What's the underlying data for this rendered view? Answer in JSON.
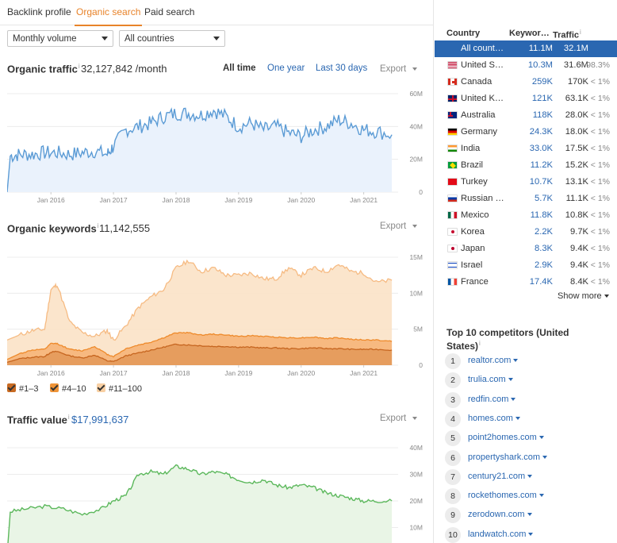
{
  "tabs": [
    {
      "label": "Backlink profile",
      "active": false
    },
    {
      "label": "Organic search",
      "active": true
    },
    {
      "label": "Paid search",
      "active": false
    }
  ],
  "filters": {
    "volume": "Monthly volume",
    "country": "All countries"
  },
  "organic_traffic": {
    "title": "Organic traffic",
    "value": "32,127,842 /month",
    "ranges": [
      {
        "label": "All time",
        "active": true
      },
      {
        "label": "One year",
        "active": false
      },
      {
        "label": "Last 30 days",
        "active": false
      }
    ],
    "export_label": "Export"
  },
  "organic_keywords": {
    "title": "Organic keywords",
    "value": "11,142,555",
    "export_label": "Export",
    "legend": [
      {
        "label": "#1–3",
        "color": "#c86a22"
      },
      {
        "label": "#4–10",
        "color": "#ef9438"
      },
      {
        "label": "#11–100",
        "color": "#f8cfa2"
      }
    ]
  },
  "traffic_value": {
    "title": "Traffic value",
    "value": "$17,991,637",
    "export_label": "Export"
  },
  "colors": {
    "accent": "#e8832a",
    "link": "#2a67b1",
    "traffic_line": "#5b9bd5",
    "traffic_fill": "#eaf2fc",
    "value_line": "#5cb85c",
    "value_fill": "#e9f5e6"
  },
  "chart_data": [
    {
      "type": "area",
      "name": "organic-traffic",
      "x_ticks": [
        "Jan 2016",
        "Jan 2017",
        "Jan 2018",
        "Jan 2019",
        "Jan 2020",
        "Jan 2021"
      ],
      "y_ticks": [
        "60M",
        "40M",
        "20M",
        "0"
      ],
      "ylim": [
        0,
        60
      ],
      "x": [
        2015.3,
        2015.35,
        2015.5,
        2015.7,
        2015.9,
        2016.1,
        2016.3,
        2016.5,
        2016.7,
        2016.9,
        2017.0,
        2017.2,
        2017.4,
        2017.6,
        2017.8,
        2018.0,
        2018.2,
        2018.4,
        2018.6,
        2018.8,
        2019.0,
        2019.2,
        2019.4,
        2019.6,
        2019.8,
        2020.0,
        2020.2,
        2020.4,
        2020.6,
        2020.8,
        2021.0,
        2021.2,
        2021.45
      ],
      "values": [
        0,
        22,
        23,
        23,
        24,
        24,
        23,
        24,
        25,
        23,
        28,
        38,
        40,
        42,
        46,
        48,
        48,
        47,
        50,
        46,
        40,
        42,
        38,
        40,
        36,
        34,
        38,
        40,
        44,
        42,
        38,
        37,
        35
      ]
    },
    {
      "type": "area",
      "name": "organic-keywords",
      "x_ticks": [
        "Jan 2016",
        "Jan 2017",
        "Jan 2018",
        "Jan 2019",
        "Jan 2020",
        "Jan 2021"
      ],
      "y_ticks": [
        "15M",
        "10M",
        "5M",
        "0"
      ],
      "ylim": [
        0,
        15
      ],
      "x": [
        2015.3,
        2015.5,
        2015.7,
        2015.9,
        2016.0,
        2016.1,
        2016.3,
        2016.5,
        2016.7,
        2016.9,
        2017.0,
        2017.2,
        2017.4,
        2017.6,
        2017.8,
        2018.0,
        2018.2,
        2018.4,
        2018.6,
        2018.8,
        2019.0,
        2019.2,
        2019.4,
        2019.6,
        2019.8,
        2020.0,
        2020.2,
        2020.4,
        2020.6,
        2020.8,
        2021.0,
        2021.2,
        2021.45
      ],
      "series": [
        {
          "name": "#11–100",
          "values": [
            3.5,
            4.2,
            4.8,
            5.0,
            10.5,
            11.2,
            6.0,
            4.5,
            4.0,
            4.8,
            3.5,
            5.5,
            8.0,
            9.5,
            10.5,
            13.5,
            14.5,
            13.0,
            13.5,
            12.5,
            12.5,
            12.8,
            12.0,
            12.0,
            13.5,
            12.5,
            13.5,
            13.0,
            14.0,
            13.0,
            12.8,
            11.5,
            11.8
          ]
        },
        {
          "name": "#4–10",
          "values": [
            0.8,
            1.6,
            2.1,
            2.2,
            3.0,
            3.0,
            2.2,
            2.0,
            2.6,
            1.5,
            1.2,
            2.3,
            2.8,
            3.2,
            3.8,
            4.5,
            4.5,
            4.2,
            4.3,
            4.2,
            4.0,
            4.1,
            4.0,
            3.9,
            3.8,
            3.8,
            3.9,
            3.7,
            3.8,
            3.6,
            3.5,
            3.5,
            3.3
          ]
        },
        {
          "name": "#1–3",
          "values": [
            0.4,
            0.9,
            1.1,
            1.2,
            1.8,
            1.9,
            1.3,
            1.0,
            1.4,
            0.6,
            0.5,
            1.3,
            1.7,
            2.1,
            2.5,
            2.9,
            2.8,
            2.7,
            2.6,
            2.6,
            2.5,
            2.5,
            2.4,
            2.4,
            2.3,
            2.3,
            2.4,
            2.3,
            2.3,
            2.2,
            2.2,
            2.2,
            2.1
          ]
        }
      ]
    },
    {
      "type": "area",
      "name": "traffic-value",
      "y_ticks": [
        "40M",
        "30M",
        "20M",
        "10M"
      ],
      "ylim": [
        0,
        40
      ],
      "x": [
        2015.3,
        2015.35,
        2015.6,
        2015.9,
        2016.2,
        2016.5,
        2016.8,
        2017.0,
        2017.2,
        2017.4,
        2017.6,
        2017.8,
        2018.0,
        2018.2,
        2018.4,
        2018.6,
        2018.8,
        2019.0,
        2019.2,
        2019.4,
        2019.6,
        2019.8,
        2020.0,
        2020.2,
        2020.4,
        2020.6,
        2020.8,
        2021.0,
        2021.2,
        2021.45
      ],
      "values": [
        0,
        16,
        17,
        18,
        17,
        15,
        17,
        20,
        22,
        30,
        31,
        30,
        33,
        32,
        30,
        31,
        30,
        28,
        27,
        28,
        26,
        25,
        26,
        25,
        23,
        22,
        21,
        20,
        20,
        20
      ]
    }
  ],
  "countries_table": {
    "headers": {
      "country": "Country",
      "keywords": "Keywor…",
      "traffic": "Traffic"
    },
    "rows": [
      {
        "flag": "none",
        "name": "All count…",
        "keywords": "11.1M",
        "traffic": "32.1M",
        "pct": "",
        "active": true
      },
      {
        "flag": "us",
        "name": "United S…",
        "keywords": "10.3M",
        "traffic": "31.6M",
        "pct": "98.3%"
      },
      {
        "flag": "ca",
        "name": "Canada",
        "keywords": "259K",
        "traffic": "170K",
        "pct": "< 1%"
      },
      {
        "flag": "uk",
        "name": "United K…",
        "keywords": "121K",
        "traffic": "63.1K",
        "pct": "< 1%"
      },
      {
        "flag": "au",
        "name": "Australia",
        "keywords": "118K",
        "traffic": "28.0K",
        "pct": "< 1%"
      },
      {
        "flag": "de",
        "name": "Germany",
        "keywords": "24.3K",
        "traffic": "18.0K",
        "pct": "< 1%"
      },
      {
        "flag": "in",
        "name": "India",
        "keywords": "33.0K",
        "traffic": "17.5K",
        "pct": "< 1%"
      },
      {
        "flag": "br",
        "name": "Brazil",
        "keywords": "11.2K",
        "traffic": "15.2K",
        "pct": "< 1%"
      },
      {
        "flag": "tr",
        "name": "Turkey",
        "keywords": "10.7K",
        "traffic": "13.1K",
        "pct": "< 1%"
      },
      {
        "flag": "ru",
        "name": "Russian …",
        "keywords": "5.7K",
        "traffic": "11.1K",
        "pct": "< 1%"
      },
      {
        "flag": "mx",
        "name": "Mexico",
        "keywords": "11.8K",
        "traffic": "10.8K",
        "pct": "< 1%"
      },
      {
        "flag": "kr",
        "name": "Korea",
        "keywords": "2.2K",
        "traffic": "9.7K",
        "pct": "< 1%"
      },
      {
        "flag": "jp",
        "name": "Japan",
        "keywords": "8.3K",
        "traffic": "9.4K",
        "pct": "< 1%"
      },
      {
        "flag": "il",
        "name": "Israel",
        "keywords": "2.9K",
        "traffic": "9.4K",
        "pct": "< 1%"
      },
      {
        "flag": "fr",
        "name": "France",
        "keywords": "17.4K",
        "traffic": "8.4K",
        "pct": "< 1%"
      }
    ],
    "show_more": "Show more"
  },
  "competitors": {
    "title": "Top 10 competitors (United States)",
    "items": [
      {
        "rank": "1",
        "domain": "realtor.com"
      },
      {
        "rank": "2",
        "domain": "trulia.com"
      },
      {
        "rank": "3",
        "domain": "redfin.com"
      },
      {
        "rank": "4",
        "domain": "homes.com"
      },
      {
        "rank": "5",
        "domain": "point2homes.com"
      },
      {
        "rank": "6",
        "domain": "propertyshark.com"
      },
      {
        "rank": "7",
        "domain": "century21.com"
      },
      {
        "rank": "8",
        "domain": "rockethomes.com"
      },
      {
        "rank": "9",
        "domain": "zerodown.com"
      },
      {
        "rank": "10",
        "domain": "landwatch.com"
      }
    ]
  }
}
